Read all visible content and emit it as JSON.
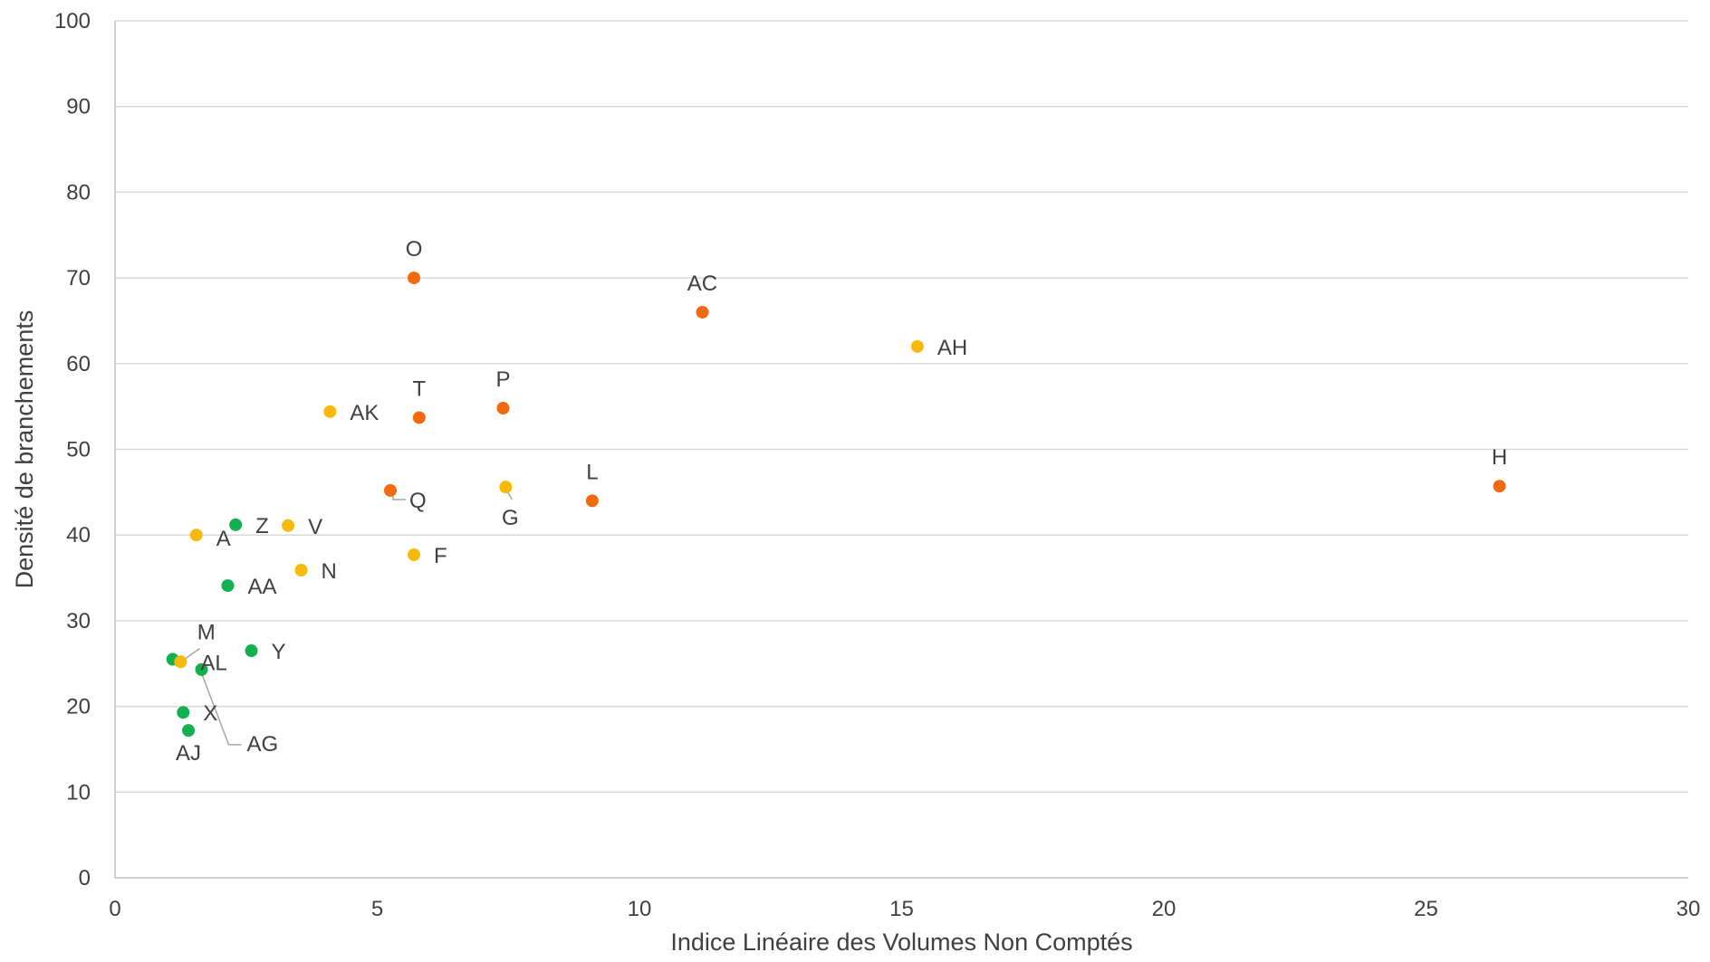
{
  "chart_data": {
    "type": "scatter",
    "title": "",
    "xlabel": "Indice Linéaire des Volumes Non Comptés",
    "ylabel": "Densité de branchements",
    "xlim": [
      0,
      30
    ],
    "ylim": [
      0,
      100
    ],
    "xticks": [
      0,
      5,
      10,
      15,
      20,
      25,
      30
    ],
    "yticks": [
      0,
      10,
      20,
      30,
      40,
      50,
      60,
      70,
      80,
      90,
      100
    ],
    "grid": "horizontal",
    "legend": "none",
    "colors": {
      "orange": "#f26a0f",
      "yellow": "#f7b90a",
      "green": "#12b04f"
    },
    "points": [
      {
        "label": "O",
        "x": 5.7,
        "y": 70.0,
        "color": "orange",
        "pos": "above"
      },
      {
        "label": "AC",
        "x": 11.2,
        "y": 66.0,
        "color": "orange",
        "pos": "above"
      },
      {
        "label": "AH",
        "x": 15.3,
        "y": 62.0,
        "color": "yellow",
        "pos": "right"
      },
      {
        "label": "T",
        "x": 5.8,
        "y": 53.7,
        "color": "orange",
        "pos": "above"
      },
      {
        "label": "P",
        "x": 7.4,
        "y": 54.8,
        "color": "orange",
        "pos": "above"
      },
      {
        "label": "AK",
        "x": 4.1,
        "y": 54.4,
        "color": "yellow",
        "pos": "right"
      },
      {
        "label": "H",
        "x": 26.4,
        "y": 45.7,
        "color": "orange",
        "pos": "above"
      },
      {
        "label": "L",
        "x": 9.1,
        "y": 44.0,
        "color": "orange",
        "pos": "above"
      },
      {
        "label": "Q",
        "x": 5.25,
        "y": 45.2,
        "color": "orange",
        "pos": "leader-q"
      },
      {
        "label": "G",
        "x": 7.45,
        "y": 45.6,
        "color": "yellow",
        "pos": "leader-g"
      },
      {
        "label": "Z",
        "x": 2.3,
        "y": 41.2,
        "color": "green",
        "pos": "right"
      },
      {
        "label": "V",
        "x": 3.3,
        "y": 41.1,
        "color": "yellow",
        "pos": "right"
      },
      {
        "label": "A",
        "x": 1.55,
        "y": 40.0,
        "color": "yellow",
        "pos": "below-right"
      },
      {
        "label": "F",
        "x": 5.7,
        "y": 37.7,
        "color": "yellow",
        "pos": "right"
      },
      {
        "label": "N",
        "x": 3.55,
        "y": 35.9,
        "color": "yellow",
        "pos": "right"
      },
      {
        "label": "AA",
        "x": 2.15,
        "y": 34.1,
        "color": "green",
        "pos": "right"
      },
      {
        "label": "Y",
        "x": 2.6,
        "y": 26.5,
        "color": "green",
        "pos": "right"
      },
      {
        "label": "M",
        "x": 1.1,
        "y": 25.5,
        "color": "green",
        "pos": "leader-m"
      },
      {
        "label": "AL",
        "x": 1.25,
        "y": 25.2,
        "color": "yellow",
        "pos": "right"
      },
      {
        "label": "AG",
        "x": 1.65,
        "y": 24.3,
        "color": "green",
        "pos": "leader-ag"
      },
      {
        "label": "X",
        "x": 1.3,
        "y": 19.3,
        "color": "green",
        "pos": "right"
      },
      {
        "label": "AJ",
        "x": 1.4,
        "y": 17.2,
        "color": "green",
        "pos": "below"
      }
    ]
  }
}
